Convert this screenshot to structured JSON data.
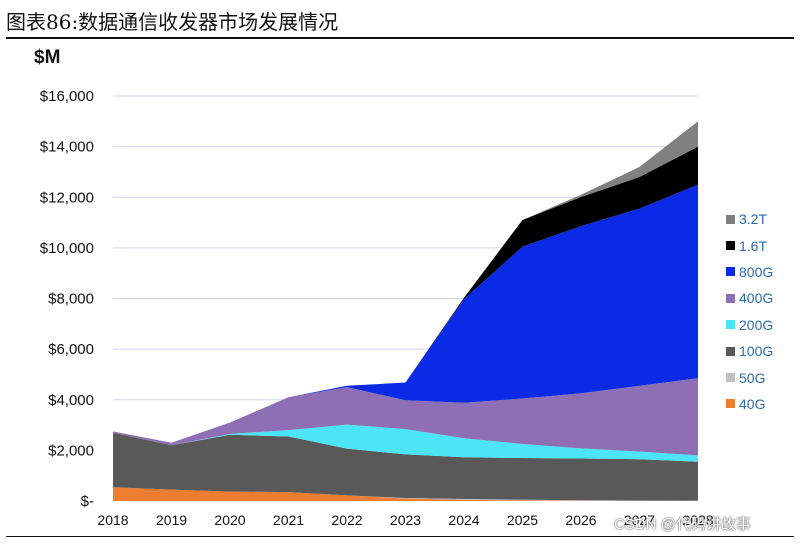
{
  "figure_title": "图表86:数据通信收发器市场发展情况",
  "watermark": "CSDN @代码讲故事",
  "chart_data": {
    "type": "area",
    "stacked": true,
    "title": "图表86:数据通信收发器市场发展情况",
    "ylabel": "$M",
    "xlabel": "",
    "ylim": [
      0,
      16000
    ],
    "yticks": [
      0,
      2000,
      4000,
      6000,
      8000,
      10000,
      12000,
      14000,
      16000
    ],
    "ytick_labels": [
      "$-",
      "$2,000",
      "$4,000",
      "$6,000",
      "$8,000",
      "$10,000",
      "$12,000",
      "$14,000",
      "$16,000"
    ],
    "categories": [
      "2018",
      "2019",
      "2020",
      "2021",
      "2022",
      "2023",
      "2024",
      "2025",
      "2026",
      "2027",
      "2028"
    ],
    "grid": true,
    "legend_position": "right",
    "series": [
      {
        "name": "40G",
        "color": "#ed7d31",
        "values": [
          550,
          450,
          370,
          350,
          220,
          100,
          50,
          20,
          10,
          0,
          0
        ]
      },
      {
        "name": "50G",
        "color": "#c0c0c0",
        "values": [
          0,
          0,
          0,
          0,
          0,
          20,
          30,
          30,
          20,
          20,
          10
        ]
      },
      {
        "name": "100G",
        "color": "#595959",
        "values": [
          2150,
          1750,
          2250,
          2200,
          1850,
          1720,
          1650,
          1650,
          1650,
          1630,
          1540
        ]
      },
      {
        "name": "200G",
        "color": "#4ce5f5",
        "values": [
          0,
          0,
          30,
          250,
          950,
          1000,
          750,
          550,
          400,
          300,
          250
        ]
      },
      {
        "name": "400G",
        "color": "#8e6fb5",
        "values": [
          50,
          100,
          450,
          1300,
          1480,
          1140,
          1400,
          1800,
          2180,
          2600,
          3050
        ]
      },
      {
        "name": "800G",
        "color": "#0a2ae6",
        "values": [
          0,
          0,
          0,
          0,
          50,
          700,
          4100,
          6000,
          6600,
          7000,
          7650
        ]
      },
      {
        "name": "1.6T",
        "color": "#000000",
        "values": [
          0,
          0,
          0,
          0,
          0,
          0,
          50,
          1050,
          1150,
          1250,
          1500
        ]
      },
      {
        "name": "3.2T",
        "color": "#808080",
        "values": [
          0,
          0,
          0,
          0,
          0,
          0,
          0,
          0,
          90,
          400,
          1000
        ]
      }
    ]
  }
}
